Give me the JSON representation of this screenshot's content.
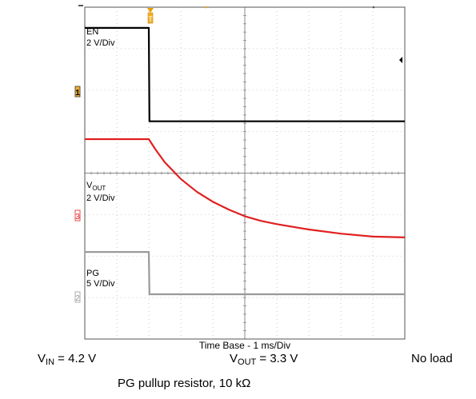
{
  "chart_data": {
    "type": "line",
    "title": "",
    "xlabel": "Time Base - 1 ms/Div",
    "grid": true,
    "x_divisions": 10,
    "y_divisions": 8,
    "time_per_div_ms": 1,
    "trigger_marker": "T",
    "series": [
      {
        "name": "EN",
        "scale": "2 V/Div",
        "channel": "1",
        "color": "#000000",
        "x_div": [
          0,
          2.0,
          2.02,
          10
        ],
        "y_div": [
          7.5,
          7.5,
          5.25,
          5.25
        ]
      },
      {
        "name": "VOUT",
        "scale": "2 V/Div",
        "channel": "3",
        "color": "#e02020",
        "x_div": [
          0,
          2.0,
          2.2,
          2.5,
          3.0,
          3.5,
          4.0,
          4.5,
          5.0,
          5.5,
          6.0,
          7.0,
          8.0,
          9.0,
          10.0
        ],
        "y_div": [
          4.82,
          4.82,
          4.58,
          4.26,
          3.86,
          3.55,
          3.31,
          3.12,
          2.96,
          2.85,
          2.77,
          2.64,
          2.54,
          2.47,
          2.45
        ]
      },
      {
        "name": "PG",
        "scale": "5 V/Div",
        "channel": "2",
        "color": "#9a9a9a",
        "x_div": [
          0,
          2.0,
          2.02,
          10
        ],
        "y_div": [
          2.1,
          2.1,
          1.08,
          1.08
        ]
      }
    ]
  },
  "labels": {
    "en": "EN",
    "en_scale": "2 V/Div",
    "vout_main": "V",
    "vout_sub": "OUT",
    "vout_scale": "2 V/Div",
    "pg": "PG",
    "pg_scale": "5 V/Div",
    "ch1": "1",
    "ch2": "2",
    "ch3": "3"
  },
  "captions": {
    "vin_main": "V",
    "vin_sub": "IN",
    "vin_value": " = 4.2 V",
    "vout_main": "V",
    "vout_sub": "OUT",
    "vout_value": " = 3.3 V",
    "load": "No load",
    "pullup": "PG pullup resistor, 10 kΩ"
  }
}
